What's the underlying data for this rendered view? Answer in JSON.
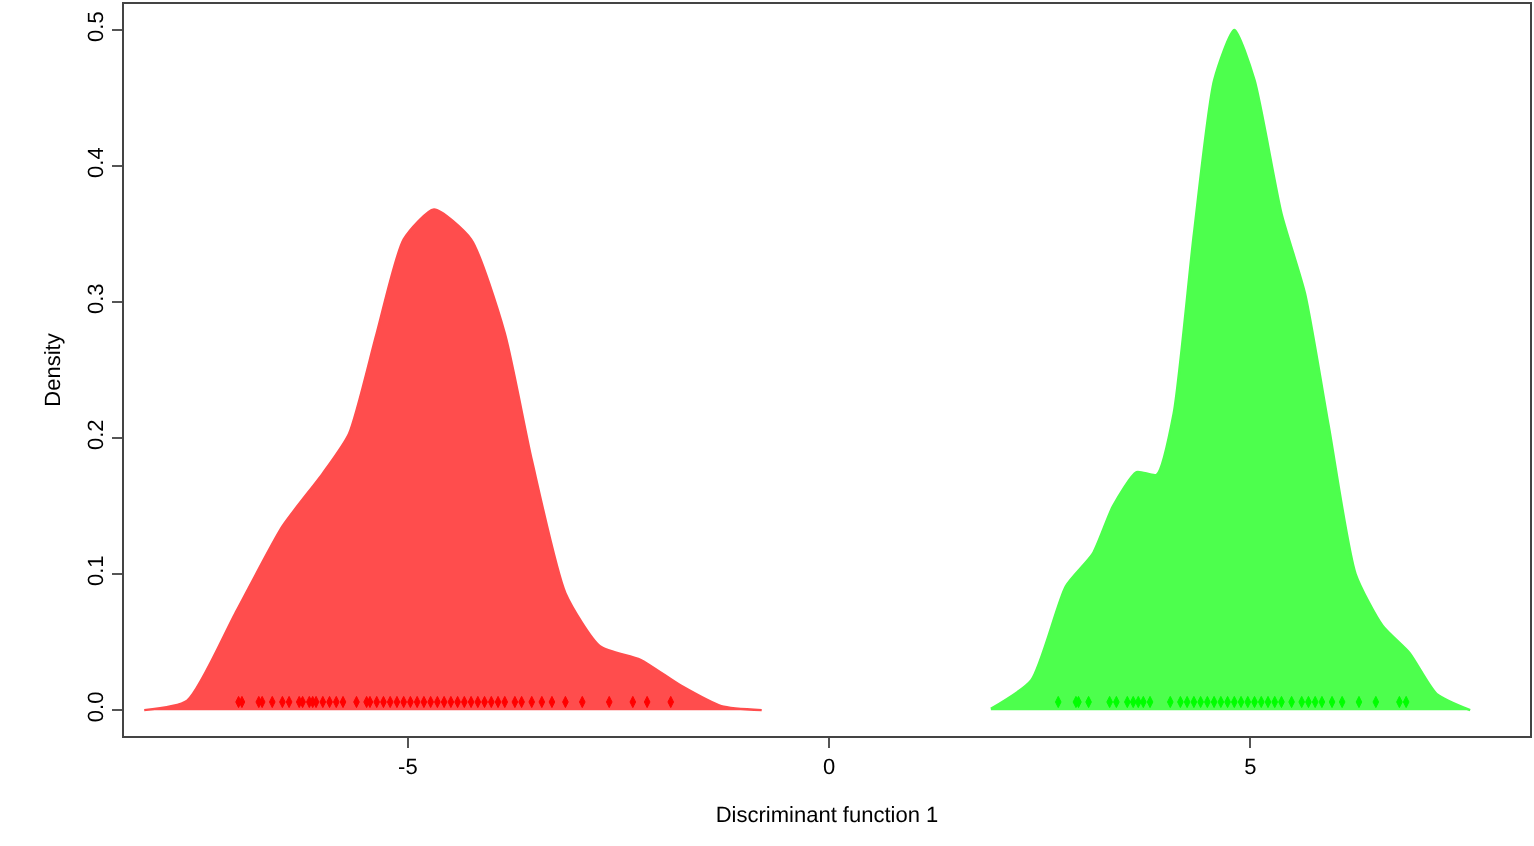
{
  "chart_data": {
    "type": "area",
    "xlabel": "Discriminant function 1",
    "ylabel": "Density",
    "xlim": [
      -8.37,
      8.32
    ],
    "ylim": [
      -0.019,
      0.519
    ],
    "xticks": [
      -5,
      0,
      5
    ],
    "yticks": [
      {
        "value": 0,
        "label": "0.0"
      },
      0.1,
      0.2,
      0.3,
      0.4,
      0.5
    ],
    "grid": false,
    "series": [
      {
        "type": "area",
        "color": "#ff4d4d",
        "x": [
          -8.13,
          -7.62,
          -7.05,
          -6.49,
          -6.01,
          -5.7,
          -5.37,
          -5.05,
          -4.69,
          -4.25,
          -3.85,
          -3.53,
          -3.13,
          -2.72,
          -2.24,
          -1.76,
          -1.28,
          -0.8
        ],
        "values": [
          0,
          0.007,
          0.071,
          0.135,
          0.174,
          0.203,
          0.277,
          0.346,
          0.368,
          0.346,
          0.277,
          0.184,
          0.086,
          0.047,
          0.037,
          0.018,
          0.003,
          0
        ]
      },
      {
        "type": "area",
        "color": "#4dff4d",
        "x": [
          1.92,
          2.4,
          2.81,
          3.13,
          3.37,
          3.65,
          3.89,
          4.09,
          4.33,
          4.57,
          4.81,
          5.05,
          5.37,
          5.65,
          5.93,
          6.25,
          6.57,
          6.89,
          7.21,
          7.61
        ],
        "values": [
          0.001,
          0.022,
          0.091,
          0.115,
          0.15,
          0.175,
          0.173,
          0.218,
          0.35,
          0.463,
          0.5,
          0.463,
          0.365,
          0.306,
          0.209,
          0.1,
          0.062,
          0.042,
          0.012,
          0
        ]
      },
      {
        "type": "scatter",
        "color": "#ff0000",
        "x": [
          -7.01,
          -6.97,
          -6.77,
          -6.73,
          -6.61,
          -6.49,
          -6.41,
          -6.29,
          -6.25,
          -6.17,
          -6.13,
          -6.09,
          -6.01,
          -5.93,
          -5.85,
          -5.77,
          -5.61,
          -5.49,
          -5.45,
          -5.37,
          -5.29,
          -5.21,
          -5.13,
          -5.05,
          -4.97,
          -4.89,
          -4.81,
          -4.73,
          -4.65,
          -4.57,
          -4.49,
          -4.41,
          -4.33,
          -4.25,
          -4.17,
          -4.09,
          -4.01,
          -3.93,
          -3.85,
          -3.73,
          -3.65,
          -3.53,
          -3.41,
          -3.29,
          -3.13,
          -2.93,
          -2.61,
          -2.33,
          -2.16,
          -1.88
        ],
        "values": [
          0.006,
          0.006,
          0.006,
          0.006,
          0.006,
          0.006,
          0.006,
          0.006,
          0.006,
          0.006,
          0.006,
          0.006,
          0.006,
          0.006,
          0.006,
          0.006,
          0.006,
          0.006,
          0.006,
          0.006,
          0.006,
          0.006,
          0.006,
          0.006,
          0.006,
          0.006,
          0.006,
          0.006,
          0.006,
          0.006,
          0.006,
          0.006,
          0.006,
          0.006,
          0.006,
          0.006,
          0.006,
          0.006,
          0.006,
          0.006,
          0.006,
          0.006,
          0.006,
          0.006,
          0.006,
          0.006,
          0.006,
          0.006,
          0.006,
          0.006
        ]
      },
      {
        "type": "scatter",
        "color": "#00ff00",
        "x": [
          2.72,
          2.93,
          2.96,
          3.08,
          3.33,
          3.41,
          3.54,
          3.61,
          3.67,
          3.73,
          3.81,
          4.05,
          4.17,
          4.25,
          4.33,
          4.41,
          4.49,
          4.57,
          4.65,
          4.73,
          4.81,
          4.89,
          4.97,
          5.05,
          5.13,
          5.21,
          5.29,
          5.37,
          5.49,
          5.61,
          5.69,
          5.77,
          5.85,
          5.97,
          6.09,
          6.29,
          6.49,
          6.77,
          6.85
        ],
        "values": [
          0.006,
          0.006,
          0.006,
          0.006,
          0.006,
          0.006,
          0.006,
          0.006,
          0.006,
          0.006,
          0.006,
          0.006,
          0.006,
          0.006,
          0.006,
          0.006,
          0.006,
          0.006,
          0.006,
          0.006,
          0.006,
          0.006,
          0.006,
          0.006,
          0.006,
          0.006,
          0.006,
          0.006,
          0.006,
          0.006,
          0.006,
          0.006,
          0.006,
          0.006,
          0.006,
          0.006,
          0.006,
          0.006,
          0.006
        ]
      }
    ]
  }
}
